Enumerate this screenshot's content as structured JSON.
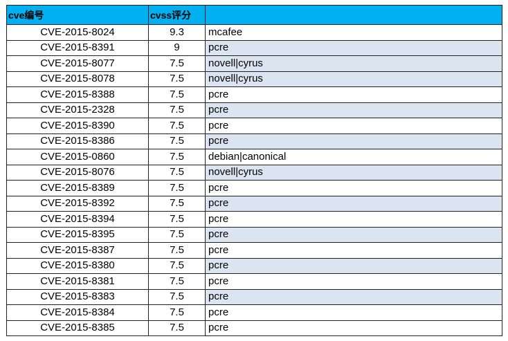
{
  "sheet": {
    "headers": [
      "cve编号",
      "cvss评分",
      ""
    ],
    "colors": {
      "header_bg": "#00b0f0",
      "band_bg": "#dbe4f1",
      "border": "#1f1f1f"
    },
    "rows": [
      {
        "cve": "CVE-2015-8024",
        "score": "9.3",
        "vendor": "mcafee",
        "band": false
      },
      {
        "cve": "CVE-2015-8391",
        "score": "9",
        "vendor": "pcre",
        "band": true
      },
      {
        "cve": "CVE-2015-8077",
        "score": "7.5",
        "vendor": "novell|cyrus",
        "band": true
      },
      {
        "cve": "CVE-2015-8078",
        "score": "7.5",
        "vendor": "novell|cyrus",
        "band": true
      },
      {
        "cve": "CVE-2015-8388",
        "score": "7.5",
        "vendor": "pcre",
        "band": false
      },
      {
        "cve": "CVE-2015-2328",
        "score": "7.5",
        "vendor": "pcre",
        "band": true
      },
      {
        "cve": "CVE-2015-8390",
        "score": "7.5",
        "vendor": "pcre",
        "band": false
      },
      {
        "cve": "CVE-2015-8386",
        "score": "7.5",
        "vendor": "pcre",
        "band": true
      },
      {
        "cve": "CVE-2015-0860",
        "score": "7.5",
        "vendor": "debian|canonical",
        "band": false
      },
      {
        "cve": "CVE-2015-8076",
        "score": "7.5",
        "vendor": "novell|cyrus",
        "band": true
      },
      {
        "cve": "CVE-2015-8389",
        "score": "7.5",
        "vendor": "pcre",
        "band": false
      },
      {
        "cve": "CVE-2015-8392",
        "score": "7.5",
        "vendor": "pcre",
        "band": true
      },
      {
        "cve": "CVE-2015-8394",
        "score": "7.5",
        "vendor": "pcre",
        "band": false
      },
      {
        "cve": "CVE-2015-8395",
        "score": "7.5",
        "vendor": "pcre",
        "band": true
      },
      {
        "cve": "CVE-2015-8387",
        "score": "7.5",
        "vendor": "pcre",
        "band": false
      },
      {
        "cve": "CVE-2015-8380",
        "score": "7.5",
        "vendor": "pcre",
        "band": true
      },
      {
        "cve": "CVE-2015-8381",
        "score": "7.5",
        "vendor": "pcre",
        "band": false
      },
      {
        "cve": "CVE-2015-8383",
        "score": "7.5",
        "vendor": "pcre",
        "band": true
      },
      {
        "cve": "CVE-2015-8384",
        "score": "7.5",
        "vendor": "pcre",
        "band": false
      },
      {
        "cve": "CVE-2015-8385",
        "score": "7.5",
        "vendor": "pcre",
        "band": false
      }
    ]
  }
}
